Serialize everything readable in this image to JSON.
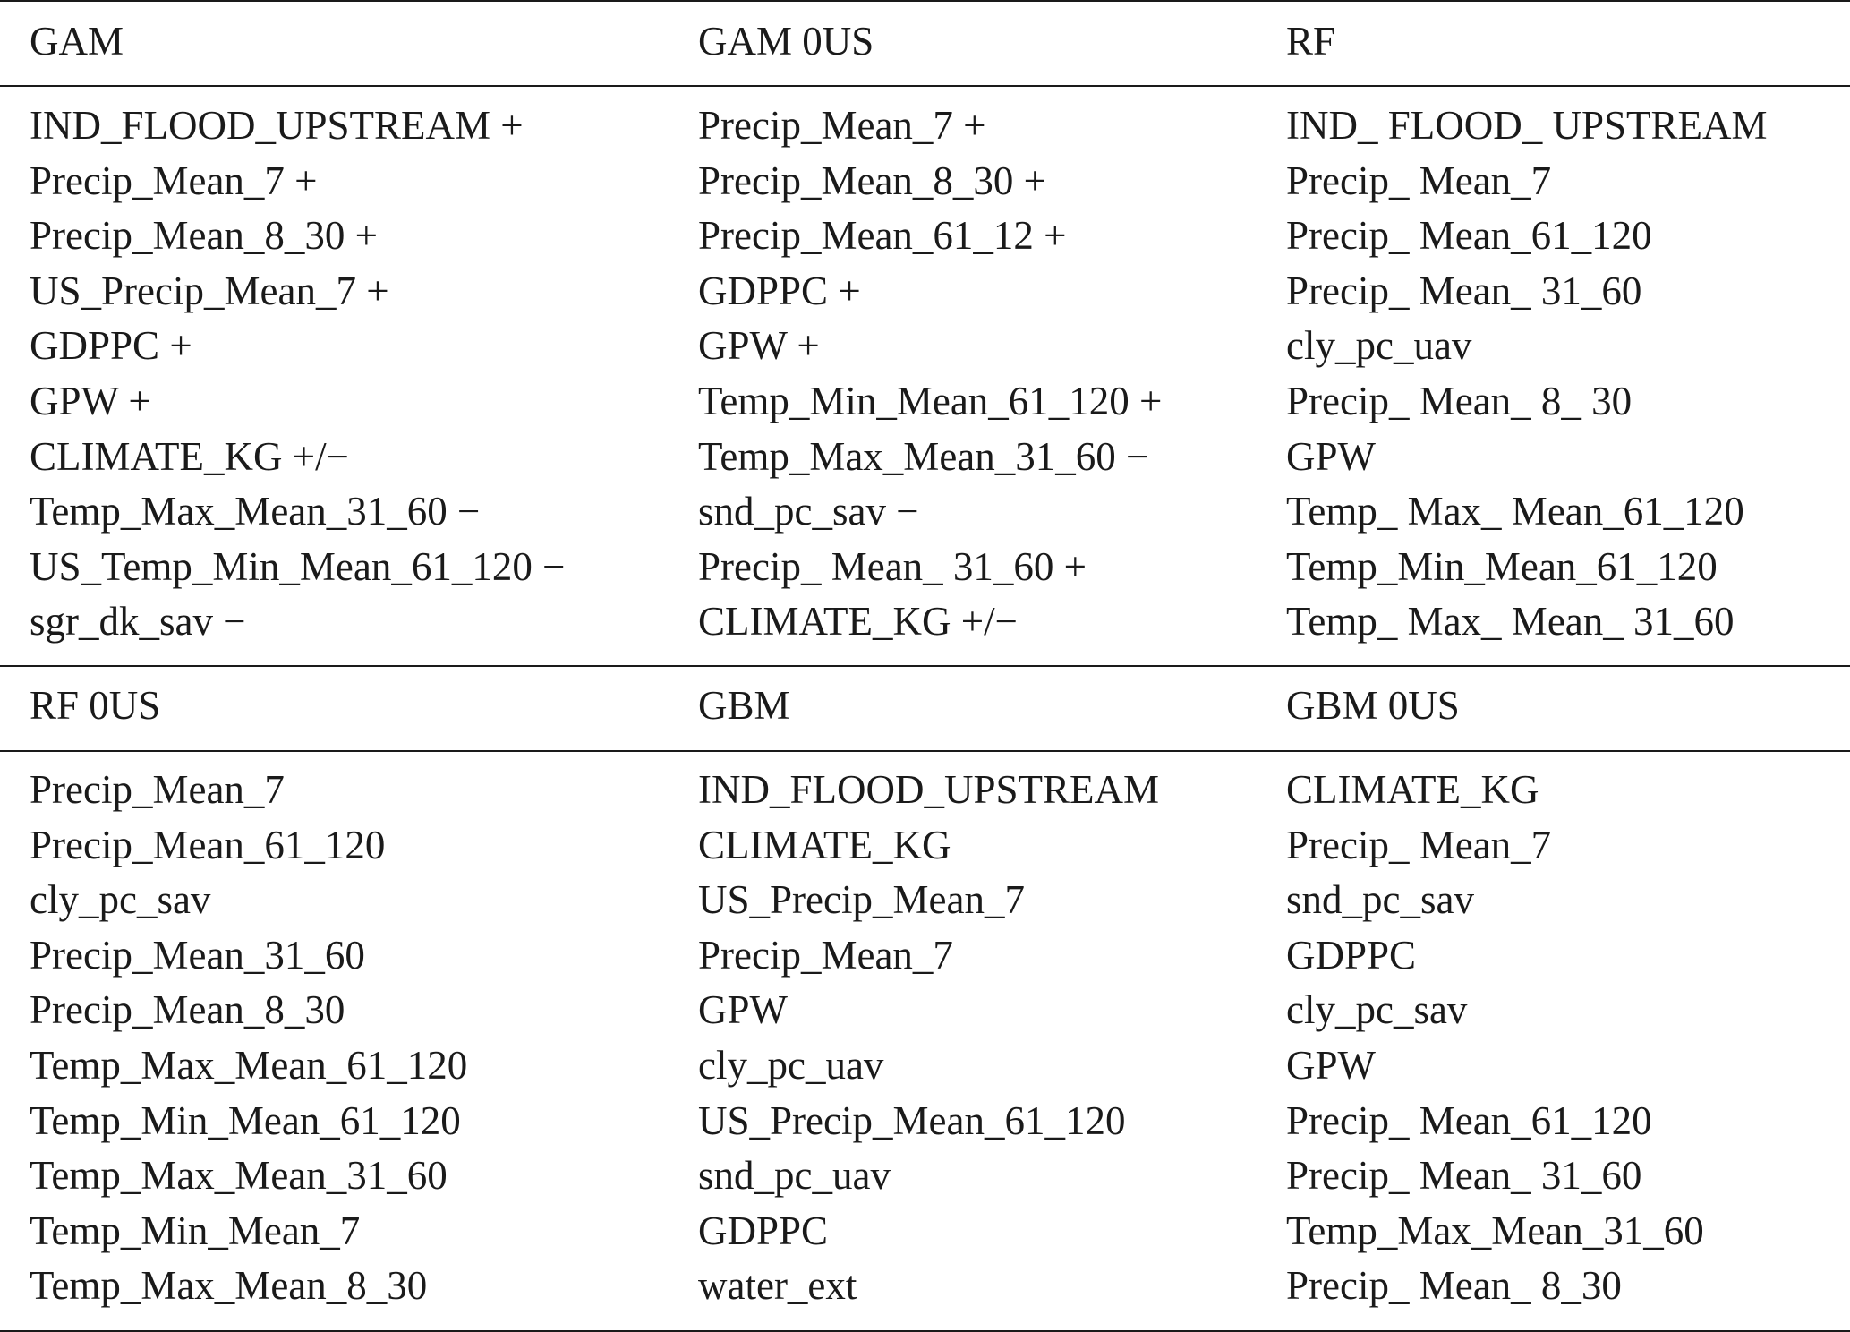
{
  "sections": [
    {
      "headers": [
        "GAM",
        "GAM 0US",
        "RF"
      ],
      "columns": [
        [
          "IND_FLOOD_UPSTREAM +",
          "Precip_Mean_7 +",
          "Precip_Mean_8_30 +",
          "US_Precip_Mean_7 +",
          "GDPPC +",
          "GPW +",
          "CLIMATE_KG +/−",
          "Temp_Max_Mean_31_60 −",
          "US_Temp_Min_Mean_61_120 −",
          "sgr_dk_sav −"
        ],
        [
          "Precip_Mean_7 +",
          "Precip_Mean_8_30 +",
          "Precip_Mean_61_12 +",
          "GDPPC +",
          "GPW +",
          "Temp_Min_Mean_61_120 +",
          "Temp_Max_Mean_31_60 −",
          "snd_pc_sav −",
          "Precip_ Mean_ 31_60 +",
          "CLIMATE_KG +/−"
        ],
        [
          "IND_ FLOOD_ UPSTREAM",
          "Precip_ Mean_7",
          "Precip_ Mean_61_120",
          "Precip_ Mean_ 31_60",
          "cly_pc_uav",
          "Precip_ Mean_ 8_ 30",
          "GPW",
          "Temp_ Max_ Mean_61_120",
          "Temp_Min_Mean_61_120",
          "Temp_ Max_ Mean_ 31_60"
        ]
      ]
    },
    {
      "headers": [
        "RF 0US",
        "GBM",
        "GBM 0US"
      ],
      "columns": [
        [
          "Precip_Mean_7",
          "Precip_Mean_61_120",
          "cly_pc_sav",
          "Precip_Mean_31_60",
          "Precip_Mean_8_30",
          "Temp_Max_Mean_61_120",
          "Temp_Min_Mean_61_120",
          "Temp_Max_Mean_31_60",
          "Temp_Min_Mean_7",
          "Temp_Max_Mean_8_30"
        ],
        [
          "IND_FLOOD_UPSTREAM",
          "CLIMATE_KG",
          "US_Precip_Mean_7",
          "Precip_Mean_7",
          "GPW",
          "cly_pc_uav",
          "US_Precip_Mean_61_120",
          "snd_pc_uav",
          "GDPPC",
          "water_ext"
        ],
        [
          "CLIMATE_KG",
          "Precip_ Mean_7",
          "snd_pc_sav",
          "GDPPC",
          "cly_pc_sav",
          "GPW",
          "Precip_ Mean_61_120",
          "Precip_ Mean_ 31_60",
          "Temp_Max_Mean_31_60",
          "Precip_ Mean_ 8_30"
        ]
      ]
    }
  ]
}
